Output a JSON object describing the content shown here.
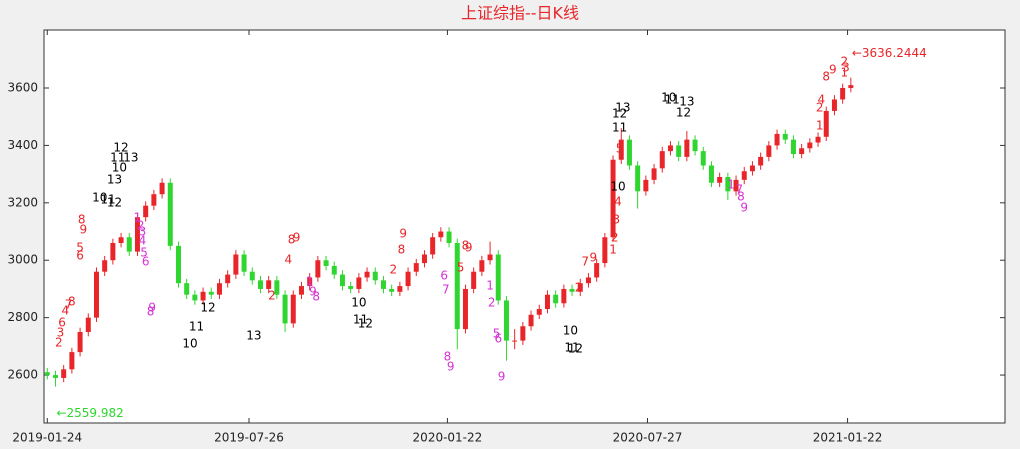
{
  "chart_data": {
    "type": "candlestick",
    "title": "上证综指--日K线",
    "up_color": "#e8262a",
    "down_color": "#2fd62f",
    "xlim": [
      -2,
      584
    ],
    "ylim": [
      2433,
      3802
    ],
    "xticks": [
      {
        "value": 0,
        "label": "2019-01-24"
      },
      {
        "value": 123,
        "label": "2019-07-26"
      },
      {
        "value": 244,
        "label": "2020-01-22"
      },
      {
        "value": 366,
        "label": "2020-07-27"
      },
      {
        "value": 488,
        "label": "2021-01-22"
      }
    ],
    "yticks": [
      2600,
      2800,
      3000,
      3200,
      3400,
      3600
    ],
    "x": [
      0,
      5,
      10,
      15,
      20,
      25,
      30,
      35,
      40,
      45,
      50,
      55,
      60,
      65,
      70,
      75,
      80,
      85,
      90,
      95,
      100,
      105,
      110,
      115,
      120,
      125,
      130,
      135,
      140,
      145,
      150,
      155,
      160,
      165,
      170,
      175,
      180,
      185,
      190,
      195,
      200,
      205,
      210,
      215,
      220,
      225,
      230,
      235,
      240,
      245,
      250,
      255,
      260,
      265,
      270,
      275,
      280,
      285,
      290,
      295,
      300,
      305,
      310,
      315,
      320,
      325,
      330,
      335,
      340,
      345,
      350,
      355,
      360,
      365,
      370,
      375,
      380,
      385,
      390,
      395,
      400,
      405,
      410,
      415,
      420,
      425,
      430,
      435,
      440,
      445,
      450,
      455,
      460,
      465,
      470,
      475,
      480,
      485,
      490
    ],
    "open": [
      2610,
      2600,
      2590,
      2620,
      2680,
      2750,
      2800,
      2960,
      3000,
      3060,
      3080,
      3030,
      3150,
      3190,
      3230,
      3270,
      3050,
      2920,
      2880,
      2860,
      2890,
      2880,
      2920,
      2950,
      3020,
      2960,
      2930,
      2900,
      2930,
      2880,
      2780,
      2880,
      2910,
      2940,
      3000,
      2980,
      2950,
      2910,
      2900,
      2940,
      2960,
      2930,
      2900,
      2890,
      2910,
      2960,
      2990,
      3020,
      3080,
      3100,
      3060,
      2760,
      2900,
      2960,
      3000,
      3020,
      2860,
      2720,
      2720,
      2770,
      2810,
      2830,
      2880,
      2850,
      2900,
      2890,
      2920,
      2940,
      2990,
      3080,
      3350,
      3420,
      3330,
      3240,
      3280,
      3320,
      3380,
      3400,
      3360,
      3420,
      3380,
      3330,
      3270,
      3290,
      3240,
      3280,
      3310,
      3330,
      3360,
      3400,
      3440,
      3420,
      3370,
      3390,
      3410,
      3430,
      3520,
      3560,
      3600
    ],
    "high": [
      2625,
      2615,
      2635,
      2695,
      2765,
      2815,
      2975,
      3015,
      3075,
      3095,
      3095,
      3165,
      3205,
      3245,
      3285,
      3285,
      3065,
      2935,
      2895,
      2905,
      2905,
      2935,
      2965,
      3035,
      3035,
      2975,
      2945,
      2945,
      2945,
      2895,
      2895,
      2925,
      2955,
      3015,
      3015,
      2995,
      2965,
      2925,
      2955,
      2975,
      2975,
      2945,
      2915,
      2925,
      2975,
      3005,
      3035,
      3095,
      3115,
      3115,
      3075,
      2915,
      2975,
      3015,
      3065,
      3035,
      2875,
      2760,
      2785,
      2825,
      2845,
      2895,
      2895,
      2915,
      2915,
      2935,
      2955,
      3005,
      3095,
      3365,
      3460,
      3435,
      3345,
      3295,
      3335,
      3395,
      3415,
      3415,
      3450,
      3435,
      3395,
      3345,
      3305,
      3305,
      3295,
      3325,
      3345,
      3375,
      3415,
      3455,
      3455,
      3435,
      3405,
      3425,
      3445,
      3535,
      3575,
      3615,
      3636.2444
    ],
    "low": [
      2585,
      2559.982,
      2575,
      2605,
      2665,
      2735,
      2785,
      2945,
      2985,
      3045,
      3015,
      3015,
      3135,
      3175,
      3215,
      3035,
      2905,
      2865,
      2845,
      2845,
      2865,
      2865,
      2905,
      2935,
      2945,
      2915,
      2885,
      2885,
      2865,
      2750,
      2765,
      2865,
      2895,
      2925,
      2965,
      2935,
      2895,
      2885,
      2885,
      2925,
      2915,
      2885,
      2875,
      2875,
      2895,
      2945,
      2975,
      3005,
      3065,
      3045,
      2690,
      2745,
      2885,
      2945,
      2985,
      2845,
      2650,
      2690,
      2705,
      2755,
      2795,
      2815,
      2835,
      2835,
      2875,
      2875,
      2905,
      2925,
      2975,
      3065,
      3335,
      3315,
      3180,
      3225,
      3265,
      3305,
      3365,
      3345,
      3345,
      3365,
      3315,
      3255,
      3255,
      3210,
      3225,
      3265,
      3295,
      3315,
      3345,
      3385,
      3405,
      3355,
      3355,
      3375,
      3395,
      3415,
      3505,
      3545,
      3585
    ],
    "close": [
      2600,
      2590,
      2620,
      2680,
      2750,
      2800,
      2960,
      3000,
      3060,
      3080,
      3030,
      3150,
      3190,
      3230,
      3270,
      3050,
      2920,
      2880,
      2860,
      2890,
      2880,
      2920,
      2950,
      3020,
      2960,
      2930,
      2900,
      2930,
      2880,
      2780,
      2880,
      2910,
      2940,
      3000,
      2980,
      2950,
      2910,
      2900,
      2940,
      2960,
      2930,
      2900,
      2890,
      2910,
      2960,
      2990,
      3020,
      3080,
      3100,
      3060,
      2760,
      2900,
      2960,
      3000,
      3020,
      2860,
      2720,
      2720,
      2770,
      2810,
      2830,
      2880,
      2850,
      2900,
      2890,
      2920,
      2940,
      2990,
      3080,
      3350,
      3420,
      3330,
      3240,
      3280,
      3320,
      3380,
      3400,
      3360,
      3420,
      3380,
      3330,
      3270,
      3290,
      3240,
      3280,
      3310,
      3330,
      3360,
      3400,
      3440,
      3420,
      3370,
      3390,
      3410,
      3430,
      3520,
      3560,
      3600,
      3610
    ],
    "extremes": [
      {
        "label": "←3636.2444",
        "value": 3636.2444,
        "x": 490,
        "color": "#e8262a"
      },
      {
        "label": "←2559.982",
        "value": 2559.982,
        "x": 5,
        "color": "#2fd62f"
      }
    ],
    "annotations": [
      {
        "color": "#000000",
        "labels": [
          {
            "text": "12",
            "x": 45,
            "y": 3391
          },
          {
            "text": "11",
            "x": 43,
            "y": 3356
          },
          {
            "text": "13",
            "x": 51,
            "y": 3356
          },
          {
            "text": "10",
            "x": 44,
            "y": 3321
          },
          {
            "text": "13",
            "x": 41,
            "y": 3279
          },
          {
            "text": "10",
            "x": 32,
            "y": 3217
          },
          {
            "text": "11",
            "x": 37,
            "y": 3210
          },
          {
            "text": "12",
            "x": 41,
            "y": 3199
          },
          {
            "text": "12",
            "x": 98,
            "y": 2833
          },
          {
            "text": "11",
            "x": 91,
            "y": 2767
          },
          {
            "text": "10",
            "x": 87,
            "y": 2708
          },
          {
            "text": "13",
            "x": 126,
            "y": 2736
          },
          {
            "text": "10",
            "x": 190,
            "y": 2851
          },
          {
            "text": "11",
            "x": 191,
            "y": 2791
          },
          {
            "text": "12",
            "x": 194,
            "y": 2778
          },
          {
            "text": "10",
            "x": 319,
            "y": 2753
          },
          {
            "text": "11",
            "x": 320,
            "y": 2694
          },
          {
            "text": "12",
            "x": 322,
            "y": 2690
          },
          {
            "text": "13",
            "x": 351,
            "y": 3530
          },
          {
            "text": "12",
            "x": 349,
            "y": 3509
          },
          {
            "text": "11",
            "x": 349,
            "y": 3461
          },
          {
            "text": "10",
            "x": 348,
            "y": 3255
          },
          {
            "text": "10",
            "x": 379,
            "y": 3565
          },
          {
            "text": "11",
            "x": 381,
            "y": 3558
          },
          {
            "text": "13",
            "x": 390,
            "y": 3551
          },
          {
            "text": "12",
            "x": 388,
            "y": 3513
          }
        ]
      },
      {
        "color": "#e8262a",
        "labels": [
          {
            "text": "8",
            "x": 21,
            "y": 3140
          },
          {
            "text": "9",
            "x": 22,
            "y": 3105
          },
          {
            "text": "5",
            "x": 20,
            "y": 3042
          },
          {
            "text": "6",
            "x": 20,
            "y": 3015
          },
          {
            "text": "2",
            "x": 7,
            "y": 2712
          },
          {
            "text": "3",
            "x": 8,
            "y": 2746
          },
          {
            "text": "6",
            "x": 9,
            "y": 2781
          },
          {
            "text": "4",
            "x": 11,
            "y": 2823
          },
          {
            "text": "7",
            "x": 13,
            "y": 2844
          },
          {
            "text": "8",
            "x": 15,
            "y": 2854
          },
          {
            "text": "9",
            "x": 217,
            "y": 3091
          },
          {
            "text": "8",
            "x": 216,
            "y": 3036
          },
          {
            "text": "2",
            "x": 211,
            "y": 2966
          },
          {
            "text": "9",
            "x": 152,
            "y": 3077
          },
          {
            "text": "8",
            "x": 149,
            "y": 3070
          },
          {
            "text": "4",
            "x": 147,
            "y": 3001
          },
          {
            "text": "2",
            "x": 137,
            "y": 2876
          },
          {
            "text": "8",
            "x": 255,
            "y": 3049
          },
          {
            "text": "9",
            "x": 257,
            "y": 3042
          },
          {
            "text": "5",
            "x": 252,
            "y": 2973
          },
          {
            "text": "9",
            "x": 333,
            "y": 3008
          },
          {
            "text": "7",
            "x": 328,
            "y": 2994
          },
          {
            "text": "2",
            "x": 324,
            "y": 2903
          },
          {
            "text": "1",
            "x": 345,
            "y": 3036
          },
          {
            "text": "2",
            "x": 346,
            "y": 3077
          },
          {
            "text": "3",
            "x": 347,
            "y": 3140
          },
          {
            "text": "4",
            "x": 348,
            "y": 3203
          },
          {
            "text": "5",
            "x": 349,
            "y": 3387
          },
          {
            "text": "8",
            "x": 475,
            "y": 3638
          },
          {
            "text": "9",
            "x": 479,
            "y": 3663
          },
          {
            "text": "1",
            "x": 486,
            "y": 3652
          },
          {
            "text": "2",
            "x": 486,
            "y": 3691
          },
          {
            "text": "3",
            "x": 487,
            "y": 3670
          },
          {
            "text": "2",
            "x": 471,
            "y": 3530
          },
          {
            "text": "4",
            "x": 472,
            "y": 3558
          },
          {
            "text": "1",
            "x": 471,
            "y": 3468
          }
        ]
      },
      {
        "color": "#d633d6",
        "labels": [
          {
            "text": "1",
            "x": 55,
            "y": 3147
          },
          {
            "text": "2",
            "x": 57,
            "y": 3119
          },
          {
            "text": "3",
            "x": 58,
            "y": 3098
          },
          {
            "text": "4",
            "x": 58,
            "y": 3067
          },
          {
            "text": "5",
            "x": 59,
            "y": 3025
          },
          {
            "text": "6",
            "x": 60,
            "y": 2994
          },
          {
            "text": "8",
            "x": 63,
            "y": 2819
          },
          {
            "text": "9",
            "x": 64,
            "y": 2833
          },
          {
            "text": "8",
            "x": 244,
            "y": 2663
          },
          {
            "text": "9",
            "x": 246,
            "y": 2628
          },
          {
            "text": "6",
            "x": 242,
            "y": 2945
          },
          {
            "text": "7",
            "x": 243,
            "y": 2896
          },
          {
            "text": "1",
            "x": 270,
            "y": 2910
          },
          {
            "text": "2",
            "x": 271,
            "y": 2851
          },
          {
            "text": "5",
            "x": 274,
            "y": 2743
          },
          {
            "text": "6",
            "x": 275,
            "y": 2725
          },
          {
            "text": "9",
            "x": 277,
            "y": 2593
          },
          {
            "text": "1",
            "x": 160,
            "y": 2924
          },
          {
            "text": "8",
            "x": 164,
            "y": 2872
          },
          {
            "text": "9",
            "x": 162,
            "y": 2890
          },
          {
            "text": "1",
            "x": 417,
            "y": 3262
          },
          {
            "text": "7",
            "x": 422,
            "y": 3245
          },
          {
            "text": "8",
            "x": 423,
            "y": 3220
          },
          {
            "text": "9",
            "x": 425,
            "y": 3182
          }
        ]
      }
    ]
  }
}
